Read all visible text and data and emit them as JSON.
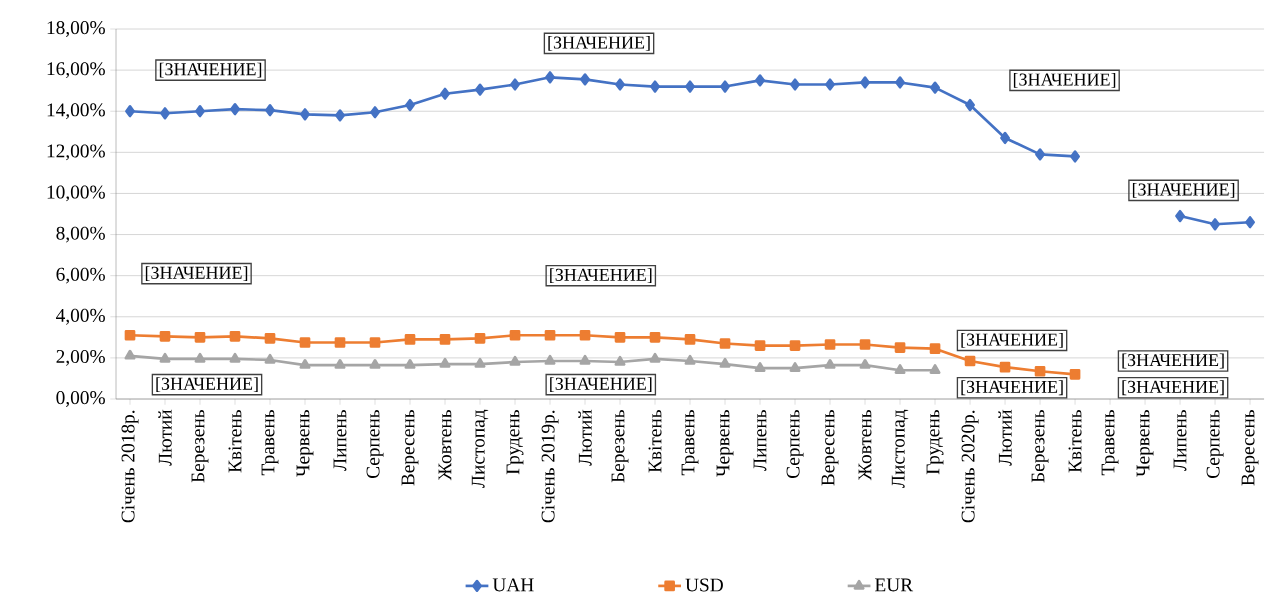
{
  "chart_data": {
    "type": "line",
    "categories": [
      "Січень 2018р.",
      "Лютий",
      "Березень",
      "Квітень",
      "Травень",
      "Червень",
      "Липень",
      "Серпень",
      "Вересень",
      "Жовтень",
      "Листопад",
      "Грудень",
      "Січень 2019р.",
      "Лютий",
      "Березень",
      "Квітень",
      "Травень",
      "Червень",
      "Липень",
      "Серпень",
      "Вересень",
      "Жовтень",
      "Листопад",
      "Грудень",
      "Січень 2020р.",
      "Лютий",
      "Березень",
      "Квітень",
      "Травень",
      "Червень",
      "Липень",
      "Серпень",
      "Вересень"
    ],
    "series": [
      {
        "name": "UAH",
        "color": "#4472c4",
        "marker": "diamond",
        "values": [
          14.0,
          13.9,
          14.0,
          14.1,
          14.05,
          13.85,
          13.8,
          13.95,
          14.3,
          14.85,
          15.05,
          15.3,
          15.65,
          15.55,
          15.3,
          15.2,
          15.2,
          15.2,
          15.5,
          15.3,
          15.3,
          15.4,
          15.4,
          15.15,
          14.3,
          12.7,
          11.9,
          11.8,
          null,
          null,
          8.9,
          8.5,
          8.6
        ]
      },
      {
        "name": "USD",
        "color": "#ed7d31",
        "marker": "square",
        "values": [
          3.1,
          3.05,
          3.0,
          3.05,
          2.95,
          2.75,
          2.75,
          2.75,
          2.9,
          2.9,
          2.95,
          3.1,
          3.1,
          3.1,
          3.0,
          3.0,
          2.9,
          2.7,
          2.6,
          2.6,
          2.65,
          2.65,
          2.5,
          2.45,
          1.85,
          1.55,
          1.35,
          1.2,
          null,
          null,
          null,
          null,
          null
        ]
      },
      {
        "name": "EUR",
        "color": "#a5a5a5",
        "marker": "triangle",
        "values": [
          2.1,
          1.95,
          1.95,
          1.95,
          1.9,
          1.65,
          1.65,
          1.65,
          1.65,
          1.7,
          1.7,
          1.8,
          1.85,
          1.85,
          1.8,
          1.95,
          1.85,
          1.7,
          1.5,
          1.5,
          1.65,
          1.65,
          1.4,
          1.4,
          null,
          null,
          null,
          null,
          null,
          null,
          null,
          null,
          null
        ]
      }
    ],
    "ylim": [
      0,
      18
    ],
    "yticks": [
      {
        "value": 0,
        "label": "0,00%"
      },
      {
        "value": 2,
        "label": "2,00%"
      },
      {
        "value": 4,
        "label": "4,00%"
      },
      {
        "value": 6,
        "label": "6,00%"
      },
      {
        "value": 8,
        "label": "8,00%"
      },
      {
        "value": 10,
        "label": "10,00%"
      },
      {
        "value": 12,
        "label": "12,00%"
      },
      {
        "value": 14,
        "label": "14,00%"
      },
      {
        "value": 16,
        "label": "16,00%"
      },
      {
        "value": 18,
        "label": "18,00%"
      }
    ],
    "grid": "y",
    "legend": "bottom",
    "line_style": "solid",
    "annotations": [
      "[ЗНАЧЕНИЕ]",
      "[ЗНАЧЕНИЕ]",
      "[ЗНАЧЕНИЕ]",
      "[ЗНАЧЕНИЕ]",
      "[ЗНАЧЕНИЕ]",
      "[ЗНАЧЕНИЕ]",
      "[ЗНАЧЕНИЕ]",
      "[ЗНАЧЕНИЕ]",
      "[ЗНАЧЕНИЕ]",
      "[ЗНАЧЕНИЕ]",
      "[ЗНАЧЕНИЕ]",
      "[ЗНАЧЕНИЕ]"
    ]
  }
}
